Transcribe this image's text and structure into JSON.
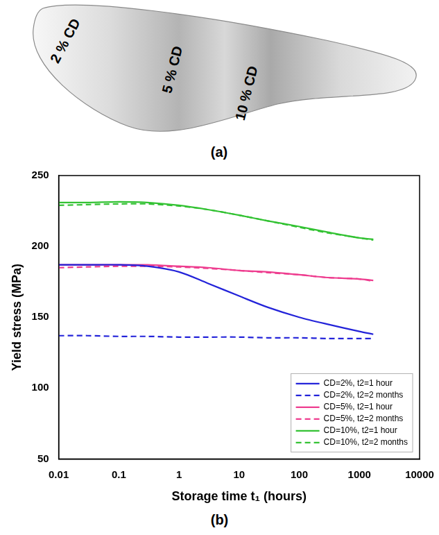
{
  "diagram": {
    "labels": [
      "2 % CD",
      "5 % CD",
      "10 % CD"
    ],
    "caption": "(a)"
  },
  "chart_data": {
    "type": "line",
    "caption": "(b)",
    "x_label": "Storage time t₁ (hours)",
    "y_label": "Yield stress (MPa)",
    "log": "x",
    "grid": false,
    "legend": "lower right",
    "xlim": [
      0.01,
      10000
    ],
    "xticks": [
      0.01,
      0.1,
      1,
      10,
      100,
      1000,
      10000
    ],
    "ylim": [
      50,
      250
    ],
    "yticks": [
      50,
      100,
      150,
      200,
      250
    ],
    "x": [
      0.01,
      0.03,
      0.1,
      0.3,
      1,
      3,
      10,
      30,
      100,
      300,
      1000,
      1700
    ],
    "series": [
      {
        "name": "CD=2%, t2=1 hour",
        "color": "#2323d9",
        "line_style": "solid",
        "values": [
          187,
          187,
          187,
          186,
          182,
          174,
          165,
          157,
          150,
          145,
          140,
          138
        ]
      },
      {
        "name": "CD=2%, t2=2 months",
        "color": "#2323d9",
        "line_style": "dashed",
        "values": [
          137,
          137,
          136.5,
          136.5,
          136,
          136,
          136,
          135.5,
          135.5,
          135,
          135,
          135
        ]
      },
      {
        "name": "CD=5%, t2=1 hour",
        "color": "#ee3d8f",
        "line_style": "solid",
        "values": [
          187,
          187,
          187,
          187,
          186,
          185,
          183,
          182,
          180,
          178,
          177,
          176
        ]
      },
      {
        "name": "CD=5%, t2=2 months",
        "color": "#ee3d8f",
        "line_style": "dashed",
        "values": [
          185,
          185.5,
          186,
          186,
          185.5,
          184.5,
          183,
          181.5,
          180,
          178,
          177,
          175.5
        ]
      },
      {
        "name": "CD=10%, t2=1 hour",
        "color": "#33c233",
        "line_style": "solid",
        "values": [
          231,
          231,
          231.5,
          231,
          229,
          226,
          222,
          218,
          214,
          210,
          206,
          205
        ]
      },
      {
        "name": "CD=10%, t2=2 months",
        "color": "#33c233",
        "line_style": "dashed",
        "values": [
          229,
          229.5,
          230,
          230,
          228.5,
          226,
          222,
          218,
          213.5,
          209.5,
          206,
          204.5
        ]
      }
    ]
  }
}
